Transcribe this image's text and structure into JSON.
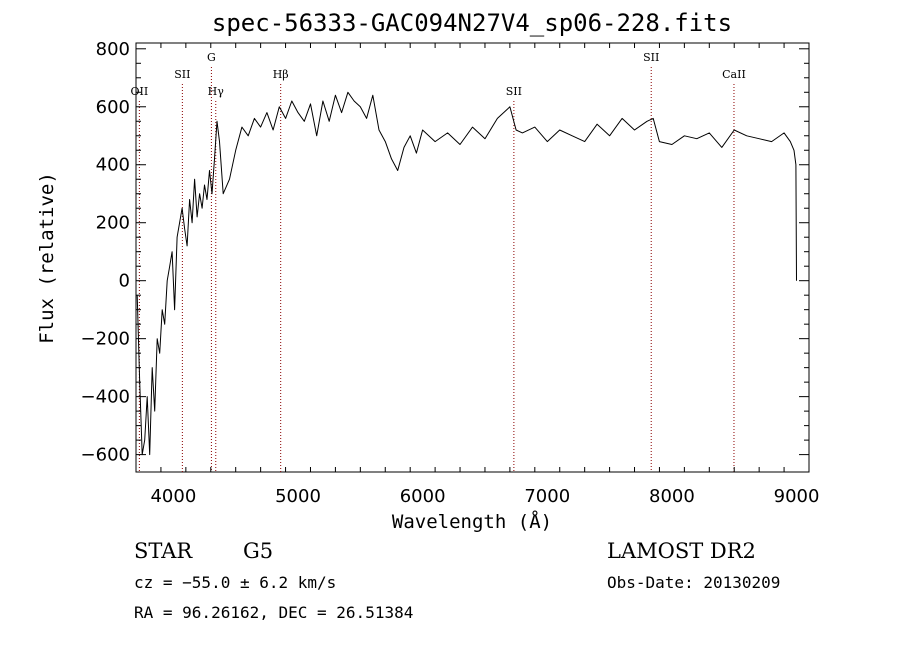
{
  "chart_data": {
    "type": "line",
    "title": "spec-56333-GAC094N27V4_sp06-228.fits",
    "xlabel": "Wavelength (Å)",
    "ylabel": "Flux (relative)",
    "xlim": [
      3700,
      9100
    ],
    "ylim": [
      -660,
      820
    ],
    "xticks": [
      4000,
      5000,
      6000,
      7000,
      8000,
      9000
    ],
    "yticks": [
      -600,
      -400,
      -200,
      0,
      200,
      400,
      600,
      800
    ],
    "grid": false,
    "line_color": "#000000",
    "marker_color": "#8b0000",
    "spectral_lines": [
      {
        "label": "OII",
        "wavelength": 3727,
        "label_level": "low"
      },
      {
        "label": "SII",
        "wavelength": 4072,
        "label_level": "mid"
      },
      {
        "label": "Hγ",
        "wavelength": 4340,
        "label_level": "low"
      },
      {
        "label": "G",
        "wavelength": 4305,
        "label_level": "high"
      },
      {
        "label": "Hβ",
        "wavelength": 4861,
        "label_level": "mid"
      },
      {
        "label": "SII",
        "wavelength": 6732,
        "label_level": "low"
      },
      {
        "label": "SII",
        "wavelength": 7834,
        "label_level": "high"
      },
      {
        "label": "CaII",
        "wavelength": 8498,
        "label_level": "mid"
      }
    ],
    "series": [
      {
        "x": [
          3710,
          3730,
          3750,
          3770,
          3790,
          3810,
          3830,
          3850,
          3870,
          3890,
          3910,
          3930,
          3950,
          3970,
          3990,
          4010,
          4030,
          4050,
          4070,
          4090,
          4110,
          4130,
          4150,
          4170,
          4190,
          4210,
          4230,
          4250,
          4270,
          4290,
          4310,
          4330,
          4350,
          4370,
          4400,
          4450,
          4500,
          4550,
          4600,
          4650,
          4700,
          4750,
          4800,
          4850,
          4900,
          4950,
          5000,
          5050,
          5100,
          5150,
          5200,
          5250,
          5300,
          5350,
          5400,
          5450,
          5500,
          5550,
          5600,
          5650,
          5700,
          5750,
          5800,
          5850,
          5900,
          5950,
          6000,
          6100,
          6200,
          6300,
          6400,
          6500,
          6600,
          6700,
          6750,
          6800,
          6900,
          7000,
          7100,
          7200,
          7300,
          7400,
          7500,
          7600,
          7700,
          7800,
          7850,
          7900,
          8000,
          8100,
          8200,
          8300,
          8400,
          8500,
          8600,
          8700,
          8800,
          8900,
          8950,
          8980,
          8995,
          9000
        ],
        "y": [
          -50,
          -350,
          -600,
          -550,
          -400,
          -600,
          -300,
          -450,
          -200,
          -250,
          -100,
          -150,
          0,
          50,
          100,
          -100,
          150,
          200,
          250,
          180,
          120,
          280,
          200,
          350,
          220,
          300,
          250,
          330,
          280,
          380,
          300,
          420,
          550,
          480,
          300,
          350,
          450,
          530,
          500,
          560,
          530,
          580,
          520,
          600,
          560,
          620,
          580,
          550,
          610,
          500,
          620,
          550,
          640,
          580,
          650,
          620,
          600,
          560,
          640,
          520,
          480,
          420,
          380,
          460,
          500,
          440,
          520,
          480,
          510,
          470,
          530,
          490,
          560,
          600,
          520,
          510,
          530,
          480,
          520,
          500,
          480,
          540,
          500,
          560,
          520,
          550,
          560,
          480,
          470,
          500,
          490,
          510,
          460,
          520,
          500,
          490,
          480,
          510,
          480,
          450,
          400,
          0
        ]
      }
    ]
  },
  "footer": {
    "class_label": "STAR",
    "subclass": "G5",
    "cz": "cz = −55.0 ± 6.2 km/s",
    "radec": "RA =  96.26162, DEC =  26.51384",
    "survey": "LAMOST DR2",
    "obs_date": "Obs-Date: 20130209"
  }
}
